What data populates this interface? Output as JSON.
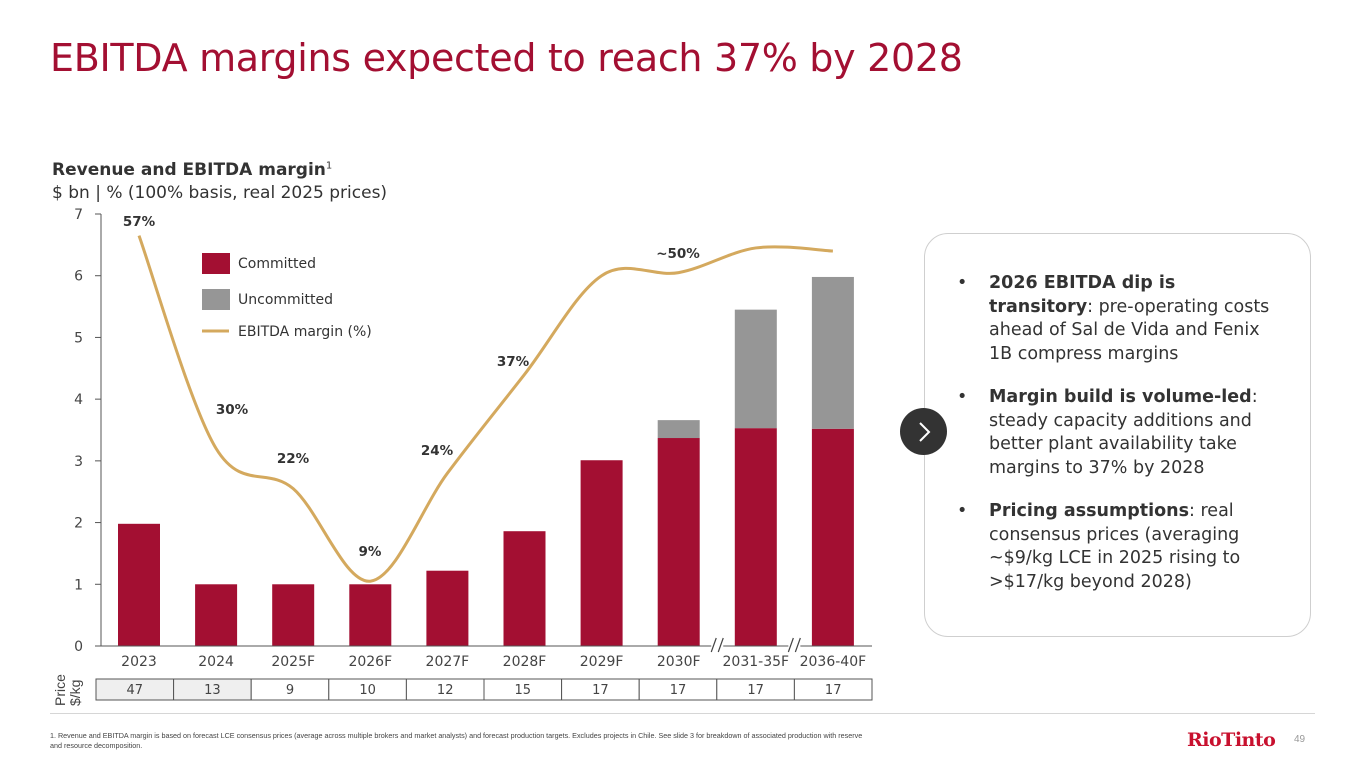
{
  "slide": {
    "title": "EBITDA margins expected to reach 37% by 2028",
    "page_number": "49",
    "logo_text": "RioTinto",
    "footnote": "1. Revenue and EBITDA margin is based on forecast LCE consensus prices (average across multiple brokers and market analysts) and forecast production targets. Excludes projects in Chile. See slide 3 for breakdown of associated production with reserve and resource decomposition."
  },
  "colors": {
    "brand": "#A30F32",
    "committed": "#A30F32",
    "uncommitted": "#969696",
    "margin_line": "#D4A95E",
    "logo": "#C8102E"
  },
  "chart_data": {
    "type": "bar",
    "stacked": true,
    "title": "Revenue and EBITDA margin",
    "title_superscript": "1",
    "subtitle": "$ bn | % (100% basis, real 2025 prices)",
    "xlabel": "",
    "ylabel": "$ bn",
    "ylim": [
      0,
      7
    ],
    "yticks": [
      "0",
      "1",
      "2",
      "3",
      "4",
      "5",
      "6",
      "7"
    ],
    "categories": [
      "2023",
      "2024",
      "2025F",
      "2026F",
      "2027F",
      "2028F",
      "2029F",
      "2030F",
      "2031-35F",
      "2036-40F"
    ],
    "axis_breaks_after": [
      "2030F",
      "2031-35F"
    ],
    "legend_position": "top-left",
    "series": [
      {
        "name": "Committed",
        "type": "bar",
        "values": [
          1.98,
          1.0,
          1.0,
          1.0,
          1.22,
          1.86,
          3.01,
          3.37,
          3.53,
          3.52
        ]
      },
      {
        "name": "Uncommitted",
        "type": "bar",
        "values": [
          0,
          0,
          0,
          0,
          0,
          0,
          0,
          0.29,
          1.92,
          2.46
        ]
      },
      {
        "name": "EBITDA margin (%)",
        "type": "line",
        "values": [
          57,
          30,
          22,
          9,
          24,
          37,
          null,
          50,
          null,
          null
        ],
        "line_y_positions_bn": [
          6.65,
          3.2,
          2.55,
          1.05,
          2.8,
          4.4,
          6.0,
          6.05,
          6.45,
          6.4
        ]
      }
    ],
    "margin_labels": [
      {
        "category": "2023",
        "text": "57%"
      },
      {
        "category": "2024",
        "text": "30%"
      },
      {
        "category": "2025F",
        "text": "22%"
      },
      {
        "category": "2026F",
        "text": "9%"
      },
      {
        "category": "2027F",
        "text": "24%"
      },
      {
        "category": "2028F",
        "text": "37%"
      },
      {
        "category": "2030F",
        "text": "~50%"
      }
    ],
    "price_table": {
      "label_line1": "Price",
      "label_line2": "$/kg",
      "values": [
        "47",
        "13",
        "9",
        "10",
        "12",
        "15",
        "17",
        "17",
        "17",
        "17"
      ],
      "historical_count": 2
    }
  },
  "panel": {
    "bullets": [
      {
        "bold": "2026 EBITDA dip is transitory",
        "rest": ": pre-operating costs ahead of Sal de Vida and Fenix 1B compress margins"
      },
      {
        "bold": "Margin build is volume-led",
        "rest": ": steady capacity additions and better plant availability take margins to 37% by 2028"
      },
      {
        "bold": "Pricing assumptions",
        "rest": ": real consensus prices (averaging ~$9/kg LCE in 2025 rising to >$17/kg beyond 2028)"
      }
    ],
    "bullet_char": "•",
    "next_icon": "chevron-right-icon"
  }
}
